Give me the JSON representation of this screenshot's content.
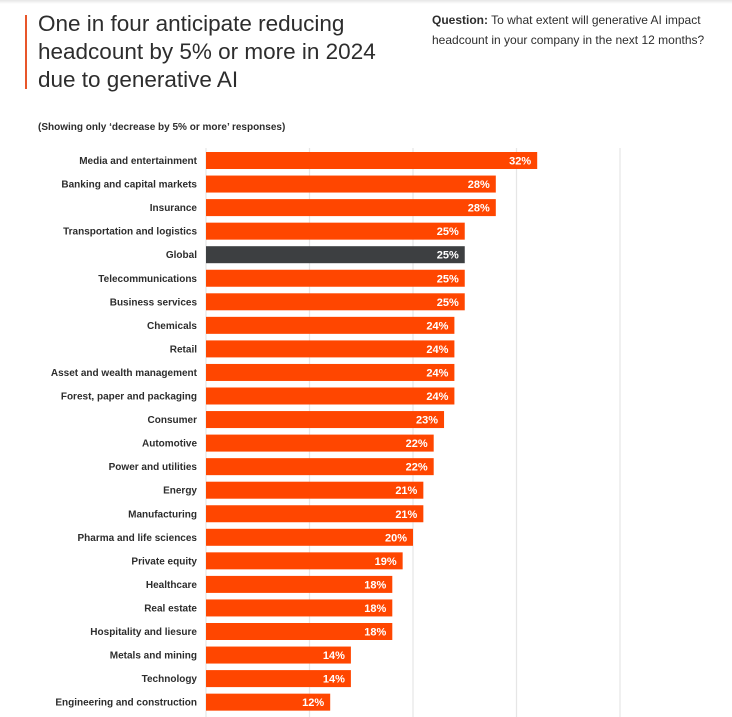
{
  "header": {
    "title": "One in four anticipate reducing headcount by 5% or more in 2024 due to generative AI",
    "question_label": "Question:",
    "question_text": "To what extent will generative AI impact headcount in your company in the next 12 months?",
    "subtitle": "(Showing only ‘decrease by 5% or more’ responses)"
  },
  "colors": {
    "bar": "#ff4600",
    "highlight": "#3d3f41",
    "accent_line": "#e8562a",
    "grid": "#e6e6e6"
  },
  "chart_data": {
    "type": "bar",
    "orientation": "horizontal",
    "title": "One in four anticipate reducing headcount by 5% or more in 2024 due to generative AI",
    "subtitle": "(Showing only ‘decrease by 5% or more’ responses)",
    "xlabel": "",
    "ylabel": "",
    "xlim": [
      0,
      40
    ],
    "grid": true,
    "gridlines": [
      0,
      10,
      20,
      30,
      40
    ],
    "value_suffix": "%",
    "highlight_category": "Global",
    "categories": [
      "Media and entertainment",
      "Banking and capital markets",
      "Insurance",
      "Transportation and logistics",
      "Global",
      "Telecommunications",
      "Business services",
      "Chemicals",
      "Retail",
      "Asset and wealth management",
      "Forest, paper and packaging",
      "Consumer",
      "Automotive",
      "Power and utilities",
      "Energy",
      "Manufacturing",
      "Pharma and life sciences",
      "Private equity",
      "Healthcare",
      "Real estate",
      "Hospitality and liesure",
      "Metals and mining",
      "Technology",
      "Engineering and construction"
    ],
    "values": [
      32,
      28,
      28,
      25,
      25,
      25,
      25,
      24,
      24,
      24,
      24,
      23,
      22,
      22,
      21,
      21,
      20,
      19,
      18,
      18,
      18,
      14,
      14,
      12
    ],
    "labels": [
      "32%",
      "28%",
      "28%",
      "25%",
      "25%",
      "25%",
      "25%",
      "24%",
      "24%",
      "24%",
      "24%",
      "23%",
      "22%",
      "22%",
      "21%",
      "21%",
      "20%",
      "19%",
      "18%",
      "18%",
      "18%",
      "14%",
      "14%",
      "12%"
    ]
  }
}
